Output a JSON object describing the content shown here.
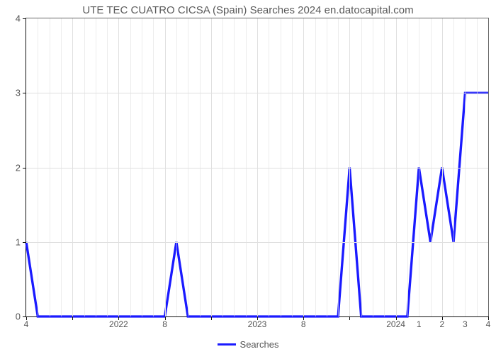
{
  "chart": {
    "type": "line",
    "title": "UTE TEC CUATRO CICSA (Spain) Searches 2024 en.datocapital.com",
    "title_fontsize": 15,
    "title_color": "#5a5a5a",
    "background_color": "#ffffff",
    "grid_color": "#e0e0e0",
    "axis_color": "#111111",
    "border_color": "#666666",
    "ylim": [
      0,
      4
    ],
    "yticks": [
      0,
      1,
      2,
      3,
      4
    ],
    "ytick_fontsize": 13,
    "ytick_color": "#555555",
    "x_points": 40,
    "x_major_gridlines_at": [
      0,
      4,
      8,
      12,
      16,
      20,
      24,
      28,
      32,
      36,
      40
    ],
    "x_minor_gridlines_every": 1,
    "x_tick_labels": [
      {
        "pos": 0,
        "label": "4"
      },
      {
        "pos": 8,
        "label": "2022"
      },
      {
        "pos": 12,
        "label": "8"
      },
      {
        "pos": 20,
        "label": "2023"
      },
      {
        "pos": 24,
        "label": "8"
      },
      {
        "pos": 32,
        "label": "2024"
      },
      {
        "pos": 34,
        "label": "1"
      },
      {
        "pos": 36,
        "label": "2"
      },
      {
        "pos": 38,
        "label": "3"
      },
      {
        "pos": 40,
        "label": "4"
      }
    ],
    "xtick_fontsize": 12,
    "xtick_color": "#555555",
    "series": {
      "name": "Searches",
      "color": "#1a1aff",
      "line_width": 2.2,
      "data": [
        1,
        0,
        0,
        0,
        0,
        0,
        0,
        0,
        0,
        0,
        0,
        0,
        0,
        1,
        0,
        0,
        0,
        0,
        0,
        0,
        0,
        0,
        0,
        0,
        0,
        0,
        0,
        0,
        2,
        0,
        0,
        0,
        0,
        0,
        2,
        1,
        2,
        1,
        3,
        3,
        3
      ]
    },
    "legend": {
      "label": "Searches",
      "position": "bottom-center",
      "fontsize": 13,
      "color": "#555555"
    }
  }
}
